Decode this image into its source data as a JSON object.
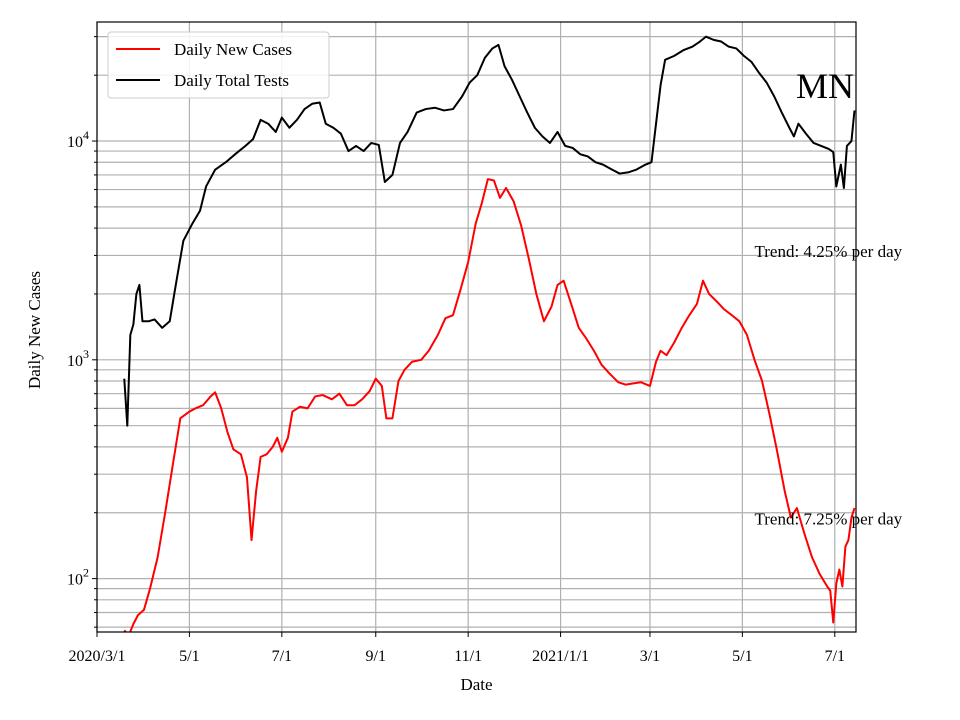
{
  "chart_data": {
    "type": "line",
    "state_label": "MN",
    "xlabel": "Date",
    "ylabel": "Daily New Cases",
    "y_scale": "log",
    "ylim": [
      57,
      35000
    ],
    "xlim": [
      "2020-03-01",
      "2021-07-15"
    ],
    "x_ticks": [
      {
        "date": "2020-03-01",
        "label": "2020/3/1"
      },
      {
        "date": "2020-05-01",
        "label": "5/1"
      },
      {
        "date": "2020-07-01",
        "label": "7/1"
      },
      {
        "date": "2020-09-01",
        "label": "9/1"
      },
      {
        "date": "2020-11-01",
        "label": "11/1"
      },
      {
        "date": "2021-01-01",
        "label": "2021/1/1"
      },
      {
        "date": "2021-03-01",
        "label": "3/1"
      },
      {
        "date": "2021-05-01",
        "label": "5/1"
      },
      {
        "date": "2021-07-01",
        "label": "7/1"
      }
    ],
    "y_ticks": [
      {
        "value": 100,
        "base": "10",
        "exp": "2"
      },
      {
        "value": 1000,
        "base": "10",
        "exp": "3"
      },
      {
        "value": 10000,
        "base": "10",
        "exp": "4"
      }
    ],
    "grid": true,
    "legend_position": "top-left",
    "annotations": [
      {
        "text": "Trend: 4.25% per day",
        "date": "2021-05-09",
        "value": 3150
      },
      {
        "text": "Trend: 7.25% per day",
        "date": "2021-05-09",
        "value": 188
      }
    ],
    "series": [
      {
        "name": "Daily New Cases",
        "color": "#ff0000",
        "points": [
          [
            "2020-03-19",
            58
          ],
          [
            "2020-03-22",
            55
          ],
          [
            "2020-03-25",
            62
          ],
          [
            "2020-03-28",
            68
          ],
          [
            "2020-04-01",
            72
          ],
          [
            "2020-04-05",
            90
          ],
          [
            "2020-04-10",
            125
          ],
          [
            "2020-04-15",
            200
          ],
          [
            "2020-04-20",
            330
          ],
          [
            "2020-04-25",
            540
          ],
          [
            "2020-05-01",
            580
          ],
          [
            "2020-05-05",
            600
          ],
          [
            "2020-05-10",
            620
          ],
          [
            "2020-05-15",
            680
          ],
          [
            "2020-05-18",
            710
          ],
          [
            "2020-05-22",
            600
          ],
          [
            "2020-05-26",
            470
          ],
          [
            "2020-05-30",
            390
          ],
          [
            "2020-06-04",
            370
          ],
          [
            "2020-06-08",
            290
          ],
          [
            "2020-06-11",
            150
          ],
          [
            "2020-06-14",
            250
          ],
          [
            "2020-06-17",
            360
          ],
          [
            "2020-06-21",
            370
          ],
          [
            "2020-06-25",
            400
          ],
          [
            "2020-06-28",
            440
          ],
          [
            "2020-07-01",
            380
          ],
          [
            "2020-07-05",
            440
          ],
          [
            "2020-07-08",
            580
          ],
          [
            "2020-07-13",
            610
          ],
          [
            "2020-07-18",
            600
          ],
          [
            "2020-07-23",
            680
          ],
          [
            "2020-07-28",
            690
          ],
          [
            "2020-08-03",
            660
          ],
          [
            "2020-08-08",
            700
          ],
          [
            "2020-08-13",
            620
          ],
          [
            "2020-08-18",
            620
          ],
          [
            "2020-08-23",
            660
          ],
          [
            "2020-08-28",
            720
          ],
          [
            "2020-09-01",
            820
          ],
          [
            "2020-09-05",
            760
          ],
          [
            "2020-09-08",
            540
          ],
          [
            "2020-09-12",
            540
          ],
          [
            "2020-09-16",
            800
          ],
          [
            "2020-09-20",
            900
          ],
          [
            "2020-09-25",
            980
          ],
          [
            "2020-10-01",
            1000
          ],
          [
            "2020-10-06",
            1100
          ],
          [
            "2020-10-12",
            1300
          ],
          [
            "2020-10-17",
            1550
          ],
          [
            "2020-10-22",
            1600
          ],
          [
            "2020-10-27",
            2100
          ],
          [
            "2020-11-01",
            2800
          ],
          [
            "2020-11-06",
            4200
          ],
          [
            "2020-11-10",
            5200
          ],
          [
            "2020-11-14",
            6700
          ],
          [
            "2020-11-18",
            6600
          ],
          [
            "2020-11-22",
            5500
          ],
          [
            "2020-11-26",
            6100
          ],
          [
            "2020-12-01",
            5300
          ],
          [
            "2020-12-06",
            4100
          ],
          [
            "2020-12-11",
            2900
          ],
          [
            "2020-12-16",
            2000
          ],
          [
            "2020-12-21",
            1500
          ],
          [
            "2020-12-26",
            1750
          ],
          [
            "2020-12-30",
            2200
          ],
          [
            "2021-01-03",
            2300
          ],
          [
            "2021-01-08",
            1800
          ],
          [
            "2021-01-13",
            1400
          ],
          [
            "2021-01-18",
            1250
          ],
          [
            "2021-01-23",
            1100
          ],
          [
            "2021-01-28",
            950
          ],
          [
            "2021-02-02",
            870
          ],
          [
            "2021-02-08",
            790
          ],
          [
            "2021-02-13",
            770
          ],
          [
            "2021-02-18",
            780
          ],
          [
            "2021-02-23",
            790
          ],
          [
            "2021-03-01",
            760
          ],
          [
            "2021-03-05",
            980
          ],
          [
            "2021-03-08",
            1100
          ],
          [
            "2021-03-12",
            1050
          ],
          [
            "2021-03-17",
            1200
          ],
          [
            "2021-03-22",
            1400
          ],
          [
            "2021-03-27",
            1600
          ],
          [
            "2021-04-01",
            1800
          ],
          [
            "2021-04-05",
            2300
          ],
          [
            "2021-04-09",
            2000
          ],
          [
            "2021-04-14",
            1850
          ],
          [
            "2021-04-19",
            1700
          ],
          [
            "2021-04-24",
            1600
          ],
          [
            "2021-04-29",
            1500
          ],
          [
            "2021-05-04",
            1300
          ],
          [
            "2021-05-09",
            1000
          ],
          [
            "2021-05-14",
            800
          ],
          [
            "2021-05-19",
            560
          ],
          [
            "2021-05-24",
            380
          ],
          [
            "2021-05-29",
            250
          ],
          [
            "2021-06-02",
            190
          ],
          [
            "2021-06-06",
            210
          ],
          [
            "2021-06-11",
            160
          ],
          [
            "2021-06-16",
            125
          ],
          [
            "2021-06-21",
            105
          ],
          [
            "2021-06-26",
            92
          ],
          [
            "2021-06-28",
            88
          ],
          [
            "2021-06-30",
            63
          ],
          [
            "2021-07-02",
            95
          ],
          [
            "2021-07-04",
            110
          ],
          [
            "2021-07-06",
            92
          ],
          [
            "2021-07-08",
            140
          ],
          [
            "2021-07-10",
            150
          ],
          [
            "2021-07-12",
            190
          ],
          [
            "2021-07-14",
            210
          ]
        ]
      },
      {
        "name": "Daily Total Tests",
        "color": "#000000",
        "points": [
          [
            "2020-03-19",
            820
          ],
          [
            "2020-03-21",
            500
          ],
          [
            "2020-03-23",
            1300
          ],
          [
            "2020-03-25",
            1450
          ],
          [
            "2020-03-27",
            2000
          ],
          [
            "2020-03-29",
            2200
          ],
          [
            "2020-03-31",
            1500
          ],
          [
            "2020-04-04",
            1500
          ],
          [
            "2020-04-08",
            1530
          ],
          [
            "2020-04-13",
            1400
          ],
          [
            "2020-04-18",
            1500
          ],
          [
            "2020-04-22",
            2200
          ],
          [
            "2020-04-27",
            3500
          ],
          [
            "2020-05-03",
            4200
          ],
          [
            "2020-05-08",
            4800
          ],
          [
            "2020-05-12",
            6200
          ],
          [
            "2020-05-18",
            7400
          ],
          [
            "2020-05-25",
            8000
          ],
          [
            "2020-06-01",
            8800
          ],
          [
            "2020-06-07",
            9500
          ],
          [
            "2020-06-12",
            10200
          ],
          [
            "2020-06-17",
            12500
          ],
          [
            "2020-06-22",
            12000
          ],
          [
            "2020-06-27",
            11000
          ],
          [
            "2020-07-01",
            12800
          ],
          [
            "2020-07-06",
            11500
          ],
          [
            "2020-07-11",
            12500
          ],
          [
            "2020-07-16",
            14000
          ],
          [
            "2020-07-21",
            14800
          ],
          [
            "2020-07-26",
            15000
          ],
          [
            "2020-07-30",
            12000
          ],
          [
            "2020-08-04",
            11500
          ],
          [
            "2020-08-09",
            10800
          ],
          [
            "2020-08-14",
            9000
          ],
          [
            "2020-08-19",
            9500
          ],
          [
            "2020-08-24",
            9000
          ],
          [
            "2020-08-29",
            9800
          ],
          [
            "2020-09-03",
            9600
          ],
          [
            "2020-09-07",
            6500
          ],
          [
            "2020-09-12",
            7000
          ],
          [
            "2020-09-17",
            9800
          ],
          [
            "2020-09-22",
            11000
          ],
          [
            "2020-09-28",
            13500
          ],
          [
            "2020-10-04",
            14000
          ],
          [
            "2020-10-10",
            14200
          ],
          [
            "2020-10-16",
            13800
          ],
          [
            "2020-10-22",
            14000
          ],
          [
            "2020-10-28",
            16000
          ],
          [
            "2020-11-02",
            18500
          ],
          [
            "2020-11-07",
            20000
          ],
          [
            "2020-11-12",
            24000
          ],
          [
            "2020-11-17",
            26500
          ],
          [
            "2020-11-21",
            27500
          ],
          [
            "2020-11-25",
            22000
          ],
          [
            "2020-11-30",
            19000
          ],
          [
            "2020-12-05",
            16000
          ],
          [
            "2020-12-10",
            13500
          ],
          [
            "2020-12-15",
            11500
          ],
          [
            "2020-12-20",
            10500
          ],
          [
            "2020-12-25",
            9800
          ],
          [
            "2020-12-30",
            11000
          ],
          [
            "2021-01-04",
            9500
          ],
          [
            "2021-01-09",
            9300
          ],
          [
            "2021-01-14",
            8700
          ],
          [
            "2021-01-19",
            8500
          ],
          [
            "2021-01-24",
            8000
          ],
          [
            "2021-01-29",
            7800
          ],
          [
            "2021-02-04",
            7400
          ],
          [
            "2021-02-09",
            7100
          ],
          [
            "2021-02-15",
            7200
          ],
          [
            "2021-02-20",
            7400
          ],
          [
            "2021-02-26",
            7800
          ],
          [
            "2021-03-02",
            8000
          ],
          [
            "2021-03-05",
            12000
          ],
          [
            "2021-03-08",
            18000
          ],
          [
            "2021-03-11",
            23500
          ],
          [
            "2021-03-17",
            24500
          ],
          [
            "2021-03-23",
            26000
          ],
          [
            "2021-03-29",
            27000
          ],
          [
            "2021-04-03",
            28500
          ],
          [
            "2021-04-07",
            30000
          ],
          [
            "2021-04-12",
            29000
          ],
          [
            "2021-04-17",
            28500
          ],
          [
            "2021-04-22",
            27000
          ],
          [
            "2021-04-27",
            26500
          ],
          [
            "2021-05-02",
            24500
          ],
          [
            "2021-05-07",
            23000
          ],
          [
            "2021-05-12",
            20500
          ],
          [
            "2021-05-17",
            18500
          ],
          [
            "2021-05-22",
            16000
          ],
          [
            "2021-05-27",
            13500
          ],
          [
            "2021-06-01",
            11500
          ],
          [
            "2021-06-04",
            10500
          ],
          [
            "2021-06-07",
            12000
          ],
          [
            "2021-06-12",
            10800
          ],
          [
            "2021-06-17",
            9800
          ],
          [
            "2021-06-22",
            9500
          ],
          [
            "2021-06-27",
            9200
          ],
          [
            "2021-06-30",
            8900
          ],
          [
            "2021-07-02",
            6200
          ],
          [
            "2021-07-05",
            7800
          ],
          [
            "2021-07-07",
            6100
          ],
          [
            "2021-07-09",
            9500
          ],
          [
            "2021-07-12",
            10000
          ],
          [
            "2021-07-14",
            13800
          ]
        ]
      }
    ]
  }
}
